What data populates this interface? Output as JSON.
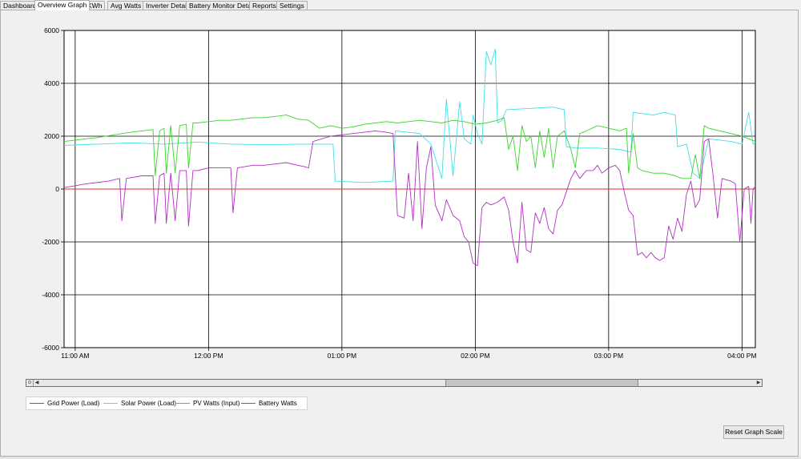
{
  "tabs": [
    {
      "label": "Dashboard",
      "active": false
    },
    {
      "label": "Overview Graph",
      "active": true
    },
    {
      "label": "KWh",
      "active": false
    },
    {
      "label": "Avg Watts",
      "active": false
    },
    {
      "label": "Inverter Detail",
      "active": false
    },
    {
      "label": "Battery Monitor Detail",
      "active": false
    },
    {
      "label": "Reports",
      "active": false
    },
    {
      "label": "Settings",
      "active": false
    }
  ],
  "reset_button_label": "Reset Graph Scale",
  "chart_data": {
    "type": "line",
    "title": "",
    "xlabel": "",
    "ylabel": "",
    "ylim": [
      -6000,
      6000
    ],
    "y_ticks": [
      6000,
      4000,
      2000,
      0,
      -2000,
      -4000,
      -6000
    ],
    "x_tick_labels": [
      "11:00 AM",
      "12:00 PM",
      "01:00 PM",
      "02:00 PM",
      "03:00 PM",
      "04:00 PM"
    ],
    "x_unit": "minutes after 10:55 AM",
    "xlim": [
      0,
      311
    ],
    "grid": true,
    "legend_position": "bottom-left",
    "series": [
      {
        "name": "Grid Power (Load)",
        "color": "#e0302a",
        "points": [
          [
            0,
            0
          ],
          [
            311,
            0
          ]
        ]
      },
      {
        "name": "Solar Power (Load)",
        "color": "#3ee0e8",
        "points": [
          [
            0,
            1650
          ],
          [
            15,
            1700
          ],
          [
            30,
            1750
          ],
          [
            45,
            1700
          ],
          [
            60,
            1780
          ],
          [
            75,
            1700
          ],
          [
            90,
            1680
          ],
          [
            110,
            1700
          ],
          [
            121,
            1700
          ],
          [
            122,
            300
          ],
          [
            135,
            250
          ],
          [
            148,
            300
          ],
          [
            149,
            2200
          ],
          [
            160,
            2100
          ],
          [
            165,
            1700
          ],
          [
            170,
            400
          ],
          [
            172,
            3400
          ],
          [
            175,
            500
          ],
          [
            178,
            3300
          ],
          [
            180,
            1900
          ],
          [
            183,
            1700
          ],
          [
            184,
            2800
          ],
          [
            186,
            2100
          ],
          [
            188,
            1700
          ],
          [
            190,
            5200
          ],
          [
            192,
            4700
          ],
          [
            194,
            5300
          ],
          [
            195,
            2500
          ],
          [
            197,
            2600
          ],
          [
            199,
            3000
          ],
          [
            210,
            3050
          ],
          [
            220,
            3100
          ],
          [
            225,
            3000
          ],
          [
            226,
            1600
          ],
          [
            230,
            1550
          ],
          [
            240,
            1550
          ],
          [
            250,
            1500
          ],
          [
            255,
            1400
          ],
          [
            256,
            2900
          ],
          [
            265,
            2800
          ],
          [
            270,
            2900
          ],
          [
            275,
            2800
          ],
          [
            276,
            1600
          ],
          [
            280,
            1700
          ],
          [
            283,
            600
          ],
          [
            286,
            400
          ],
          [
            290,
            1900
          ],
          [
            300,
            1800
          ],
          [
            305,
            1700
          ],
          [
            308,
            2900
          ],
          [
            310,
            1700
          ],
          [
            311,
            1750
          ]
        ]
      },
      {
        "name": "PV Watts (Input)",
        "color": "#39d42b",
        "points": [
          [
            0,
            1800
          ],
          [
            15,
            1950
          ],
          [
            30,
            2150
          ],
          [
            40,
            2250
          ],
          [
            41,
            500
          ],
          [
            43,
            2200
          ],
          [
            45,
            2300
          ],
          [
            46,
            600
          ],
          [
            48,
            2400
          ],
          [
            50,
            600
          ],
          [
            52,
            2400
          ],
          [
            55,
            2450
          ],
          [
            56,
            800
          ],
          [
            58,
            2500
          ],
          [
            60,
            2500
          ],
          [
            65,
            2550
          ],
          [
            70,
            2600
          ],
          [
            75,
            2600
          ],
          [
            80,
            2650
          ],
          [
            85,
            2700
          ],
          [
            90,
            2700
          ],
          [
            95,
            2750
          ],
          [
            100,
            2800
          ],
          [
            105,
            2650
          ],
          [
            110,
            2600
          ],
          [
            115,
            2300
          ],
          [
            120,
            2400
          ],
          [
            125,
            2300
          ],
          [
            130,
            2350
          ],
          [
            135,
            2450
          ],
          [
            140,
            2500
          ],
          [
            145,
            2550
          ],
          [
            150,
            2500
          ],
          [
            155,
            2550
          ],
          [
            160,
            2600
          ],
          [
            165,
            2550
          ],
          [
            170,
            2500
          ],
          [
            175,
            2600
          ],
          [
            180,
            2550
          ],
          [
            185,
            2450
          ],
          [
            190,
            2500
          ],
          [
            195,
            2600
          ],
          [
            198,
            2700
          ],
          [
            200,
            1500
          ],
          [
            202,
            2000
          ],
          [
            204,
            700
          ],
          [
            206,
            2400
          ],
          [
            208,
            1800
          ],
          [
            210,
            2000
          ],
          [
            212,
            800
          ],
          [
            214,
            2200
          ],
          [
            216,
            1200
          ],
          [
            218,
            2300
          ],
          [
            220,
            800
          ],
          [
            222,
            2000
          ],
          [
            225,
            2200
          ],
          [
            228,
            1500
          ],
          [
            230,
            800
          ],
          [
            232,
            2100
          ],
          [
            235,
            2200
          ],
          [
            240,
            2400
          ],
          [
            245,
            2300
          ],
          [
            250,
            2200
          ],
          [
            253,
            2300
          ],
          [
            254,
            600
          ],
          [
            256,
            2100
          ],
          [
            258,
            800
          ],
          [
            260,
            700
          ],
          [
            265,
            600
          ],
          [
            270,
            600
          ],
          [
            275,
            500
          ],
          [
            278,
            400
          ],
          [
            282,
            400
          ],
          [
            284,
            1300
          ],
          [
            286,
            400
          ],
          [
            288,
            2400
          ],
          [
            290,
            2300
          ],
          [
            295,
            2200
          ],
          [
            300,
            2100
          ],
          [
            305,
            2000
          ],
          [
            308,
            1900
          ],
          [
            311,
            1800
          ]
        ]
      },
      {
        "name": "Battery Watts",
        "color": "#b030c0",
        "points": [
          [
            0,
            50
          ],
          [
            10,
            200
          ],
          [
            20,
            300
          ],
          [
            25,
            400
          ],
          [
            26,
            -1200
          ],
          [
            28,
            400
          ],
          [
            35,
            500
          ],
          [
            40,
            500
          ],
          [
            41,
            -1300
          ],
          [
            43,
            500
          ],
          [
            45,
            600
          ],
          [
            46,
            -1300
          ],
          [
            48,
            600
          ],
          [
            50,
            -1200
          ],
          [
            52,
            700
          ],
          [
            55,
            700
          ],
          [
            56,
            -1400
          ],
          [
            58,
            700
          ],
          [
            60,
            700
          ],
          [
            65,
            800
          ],
          [
            70,
            800
          ],
          [
            75,
            800
          ],
          [
            76,
            -900
          ],
          [
            78,
            800
          ],
          [
            85,
            900
          ],
          [
            90,
            900
          ],
          [
            95,
            950
          ],
          [
            100,
            1000
          ],
          [
            105,
            900
          ],
          [
            108,
            850
          ],
          [
            110,
            800
          ],
          [
            112,
            1800
          ],
          [
            120,
            2000
          ],
          [
            125,
            2050
          ],
          [
            130,
            2100
          ],
          [
            135,
            2150
          ],
          [
            140,
            2200
          ],
          [
            145,
            2150
          ],
          [
            148,
            2100
          ],
          [
            150,
            -1000
          ],
          [
            153,
            -1100
          ],
          [
            155,
            600
          ],
          [
            157,
            -1200
          ],
          [
            159,
            1800
          ],
          [
            161,
            -1500
          ],
          [
            163,
            800
          ],
          [
            165,
            1600
          ],
          [
            167,
            -600
          ],
          [
            170,
            -1200
          ],
          [
            172,
            -400
          ],
          [
            175,
            -1000
          ],
          [
            178,
            -1200
          ],
          [
            180,
            -1800
          ],
          [
            182,
            -2000
          ],
          [
            184,
            -2800
          ],
          [
            186,
            -2900
          ],
          [
            188,
            -700
          ],
          [
            190,
            -500
          ],
          [
            192,
            -600
          ],
          [
            195,
            -500
          ],
          [
            198,
            -300
          ],
          [
            200,
            -800
          ],
          [
            202,
            -2000
          ],
          [
            204,
            -2800
          ],
          [
            206,
            -500
          ],
          [
            208,
            -2300
          ],
          [
            210,
            -2400
          ],
          [
            212,
            -900
          ],
          [
            214,
            -1300
          ],
          [
            216,
            -700
          ],
          [
            218,
            -1500
          ],
          [
            220,
            -1700
          ],
          [
            222,
            -800
          ],
          [
            224,
            -600
          ],
          [
            226,
            -100
          ],
          [
            228,
            400
          ],
          [
            230,
            700
          ],
          [
            232,
            400
          ],
          [
            235,
            700
          ],
          [
            238,
            700
          ],
          [
            240,
            900
          ],
          [
            242,
            600
          ],
          [
            245,
            800
          ],
          [
            248,
            900
          ],
          [
            250,
            700
          ],
          [
            252,
            -100
          ],
          [
            254,
            -800
          ],
          [
            256,
            -1000
          ],
          [
            258,
            -2500
          ],
          [
            260,
            -2400
          ],
          [
            262,
            -2600
          ],
          [
            264,
            -2400
          ],
          [
            266,
            -2600
          ],
          [
            268,
            -2700
          ],
          [
            270,
            -2600
          ],
          [
            272,
            -1400
          ],
          [
            274,
            -1900
          ],
          [
            276,
            -1100
          ],
          [
            278,
            -1600
          ],
          [
            280,
            -200
          ],
          [
            282,
            300
          ],
          [
            284,
            -700
          ],
          [
            286,
            -400
          ],
          [
            288,
            1800
          ],
          [
            290,
            1900
          ],
          [
            292,
            500
          ],
          [
            294,
            -1100
          ],
          [
            296,
            400
          ],
          [
            298,
            350
          ],
          [
            300,
            300
          ],
          [
            302,
            200
          ],
          [
            304,
            -2000
          ],
          [
            306,
            0
          ],
          [
            308,
            100
          ],
          [
            309,
            -1300
          ],
          [
            310,
            0
          ],
          [
            311,
            100
          ]
        ]
      }
    ]
  }
}
